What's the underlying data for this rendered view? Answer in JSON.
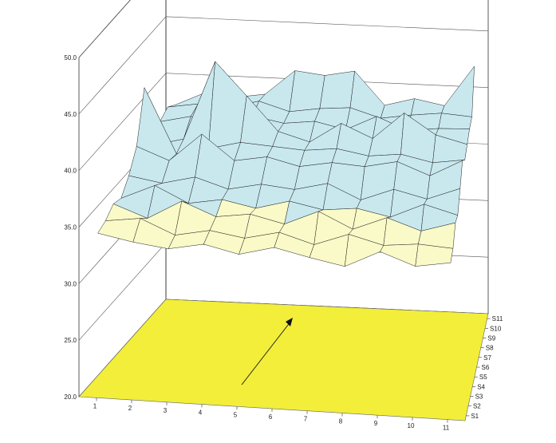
{
  "chart_data": {
    "type": "surface",
    "title": "",
    "xlabel": "",
    "ylabel": "",
    "zlabel": "",
    "x_categories": [
      "1",
      "2",
      "3",
      "4",
      "5",
      "6",
      "7",
      "8",
      "9",
      "10",
      "11"
    ],
    "series_labels": [
      "S1",
      "S2",
      "S3",
      "S4",
      "S5",
      "S6",
      "S7",
      "S8",
      "S9",
      "S10",
      "S11"
    ],
    "z_ticks": [
      "20.0",
      "25.0",
      "30.0",
      "35.0",
      "40.0",
      "45.0",
      "50.0"
    ],
    "zlim": [
      20,
      50
    ],
    "grid": true,
    "floor_color": "#f2ee3a",
    "band_colors": [
      "#fafac8",
      "#c8e8ee",
      "#5c2a68"
    ],
    "band_thresholds": [
      35,
      41.5
    ],
    "z_values": [
      [
        34.2,
        33.6,
        33.2,
        33.8,
        33.1,
        33.9,
        33.2,
        32.6,
        34.1,
        33.0,
        33.5
      ],
      [
        34.5,
        34.9,
        33.6,
        34.2,
        33.7,
        34.4,
        33.5,
        34.6,
        33.8,
        34.1,
        33.9
      ],
      [
        35.2,
        34.1,
        35.8,
        34.6,
        35.0,
        34.3,
        35.6,
        34.2,
        35.4,
        34.4,
        35.3
      ],
      [
        34.9,
        36.2,
        34.8,
        35.3,
        34.7,
        35.5,
        34.9,
        35.2,
        34.6,
        35.9,
        35.1
      ],
      [
        36.1,
        35.6,
        36.3,
        35.4,
        36.0,
        35.7,
        36.4,
        35.1,
        36.2,
        35.5,
        36.6
      ],
      [
        37.9,
        36.8,
        39.3,
        37.1,
        37.6,
        36.9,
        37.4,
        37.2,
        37.8,
        36.7,
        38.2
      ],
      [
        42.3,
        36.6,
        37.2,
        37.9,
        37.7,
        37.5,
        37.8,
        37.3,
        37.6,
        37.0,
        37.4
      ],
      [
        36.4,
        37.1,
        44.1,
        41.2,
        38.2,
        37.4,
        39.2,
        38.0,
        40.4,
        38.6,
        37.9
      ],
      [
        37.7,
        38.3,
        37.6,
        38.6,
        38.1,
        38.4,
        37.8,
        39.1,
        38.0,
        38.3,
        38.4
      ],
      [
        38.2,
        38.6,
        38.4,
        39.1,
        38.3,
        38.7,
        38.9,
        38.1,
        38.5,
        38.8,
        38.6
      ],
      [
        37.6,
        38.8,
        38.5,
        38.9,
        41.1,
        40.8,
        41.3,
        38.4,
        39.1,
        38.6,
        42.2
      ]
    ]
  }
}
